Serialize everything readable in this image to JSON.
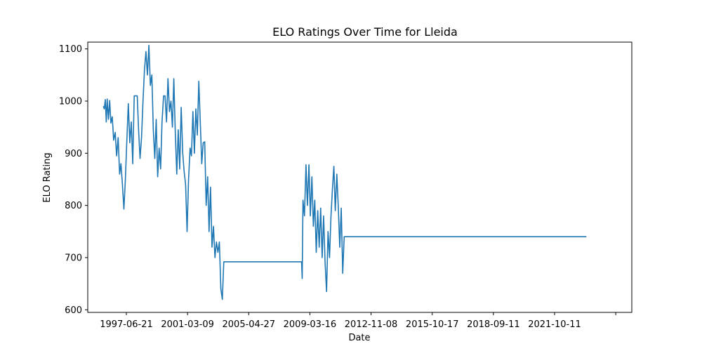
{
  "chart_data": {
    "type": "line",
    "title": "ELO Ratings Over Time for Lleida",
    "xlabel": "Date",
    "ylabel": "ELO Rating",
    "x_tick_labels": [
      "1997-06-21",
      "2001-03-09",
      "2005-04-27",
      "2009-03-16",
      "2012-11-08",
      "2015-10-17",
      "2018-09-11",
      "2021-10-11",
      ""
    ],
    "y_ticks": [
      600,
      700,
      800,
      900,
      1000,
      1100
    ],
    "ylim": [
      595,
      1113
    ],
    "grid": false,
    "legend": "none",
    "color": "#1f77b4",
    "series": [
      {
        "points": [
          [
            "1996-03-01",
            990
          ],
          [
            "1996-03-20",
            985
          ],
          [
            "1996-04-10",
            1003
          ],
          [
            "1996-05-01",
            960
          ],
          [
            "1996-05-20",
            1004
          ],
          [
            "1996-06-15",
            965
          ],
          [
            "1996-07-10",
            1001
          ],
          [
            "1996-08-05",
            958
          ],
          [
            "1996-09-01",
            970
          ],
          [
            "1996-10-01",
            925
          ],
          [
            "1996-11-01",
            940
          ],
          [
            "1996-12-01",
            895
          ],
          [
            "1997-01-01",
            930
          ],
          [
            "1997-02-01",
            860
          ],
          [
            "1997-03-01",
            880
          ],
          [
            "1997-04-01",
            840
          ],
          [
            "1997-05-01",
            793
          ],
          [
            "1997-06-01",
            850
          ],
          [
            "1997-07-01",
            925
          ],
          [
            "1997-08-01",
            995
          ],
          [
            "1997-09-01",
            920
          ],
          [
            "1997-10-01",
            960
          ],
          [
            "1997-11-01",
            880
          ],
          [
            "1997-12-01",
            1010
          ],
          [
            "1998-02-01",
            1010
          ],
          [
            "1998-03-01",
            945
          ],
          [
            "1998-04-01",
            890
          ],
          [
            "1998-05-01",
            930
          ],
          [
            "1998-06-01",
            1000
          ],
          [
            "1998-07-01",
            1060
          ],
          [
            "1998-08-01",
            1095
          ],
          [
            "1998-09-01",
            1050
          ],
          [
            "1998-10-01",
            1107
          ],
          [
            "1998-11-01",
            1030
          ],
          [
            "1998-12-01",
            1050
          ],
          [
            "1999-01-01",
            945
          ],
          [
            "1999-02-01",
            890
          ],
          [
            "1999-03-01",
            965
          ],
          [
            "1999-04-01",
            855
          ],
          [
            "1999-05-01",
            910
          ],
          [
            "1999-06-01",
            870
          ],
          [
            "1999-07-01",
            960
          ],
          [
            "1999-08-01",
            1010
          ],
          [
            "1999-09-01",
            1010
          ],
          [
            "1999-10-01",
            960
          ],
          [
            "1999-11-01",
            1043
          ],
          [
            "1999-12-01",
            980
          ],
          [
            "2000-01-01",
            1000
          ],
          [
            "2000-02-01",
            950
          ],
          [
            "2000-03-01",
            1043
          ],
          [
            "2000-04-01",
            940
          ],
          [
            "2000-05-01",
            860
          ],
          [
            "2000-06-01",
            945
          ],
          [
            "2000-07-01",
            870
          ],
          [
            "2000-08-01",
            988
          ],
          [
            "2000-09-01",
            900
          ],
          [
            "2000-10-01",
            865
          ],
          [
            "2000-11-01",
            840
          ],
          [
            "2000-12-01",
            750
          ],
          [
            "2001-01-01",
            850
          ],
          [
            "2001-02-01",
            910
          ],
          [
            "2001-03-01",
            895
          ],
          [
            "2001-04-01",
            980
          ],
          [
            "2001-05-01",
            900
          ],
          [
            "2001-06-01",
            985
          ],
          [
            "2001-07-01",
            935
          ],
          [
            "2001-08-01",
            1038
          ],
          [
            "2001-09-01",
            960
          ],
          [
            "2001-10-01",
            880
          ],
          [
            "2001-11-01",
            920
          ],
          [
            "2001-12-01",
            922
          ],
          [
            "2002-01-01",
            800
          ],
          [
            "2002-02-01",
            855
          ],
          [
            "2002-03-01",
            750
          ],
          [
            "2002-04-01",
            835
          ],
          [
            "2002-05-01",
            720
          ],
          [
            "2002-06-01",
            760
          ],
          [
            "2002-07-01",
            700
          ],
          [
            "2002-08-01",
            730
          ],
          [
            "2002-09-01",
            710
          ],
          [
            "2002-10-01",
            730
          ],
          [
            "2002-11-01",
            640
          ],
          [
            "2002-12-01",
            620
          ],
          [
            "2003-01-01",
            692
          ],
          [
            "2007-06-01",
            692
          ],
          [
            "2007-06-15",
            660
          ],
          [
            "2007-07-01",
            810
          ],
          [
            "2007-08-01",
            780
          ],
          [
            "2007-09-01",
            878
          ],
          [
            "2007-10-01",
            800
          ],
          [
            "2007-11-01",
            878
          ],
          [
            "2007-12-01",
            780
          ],
          [
            "2008-01-01",
            855
          ],
          [
            "2008-02-01",
            760
          ],
          [
            "2008-03-01",
            810
          ],
          [
            "2008-04-01",
            710
          ],
          [
            "2008-05-01",
            790
          ],
          [
            "2008-06-01",
            720
          ],
          [
            "2008-07-01",
            795
          ],
          [
            "2008-08-01",
            700
          ],
          [
            "2008-09-01",
            780
          ],
          [
            "2008-10-01",
            690
          ],
          [
            "2008-11-01",
            635
          ],
          [
            "2008-12-01",
            750
          ],
          [
            "2009-01-01",
            700
          ],
          [
            "2009-02-01",
            780
          ],
          [
            "2009-03-01",
            830
          ],
          [
            "2009-04-01",
            875
          ],
          [
            "2009-05-01",
            790
          ],
          [
            "2009-06-01",
            860
          ],
          [
            "2009-07-01",
            800
          ],
          [
            "2009-08-01",
            720
          ],
          [
            "2009-09-01",
            795
          ],
          [
            "2009-10-01",
            670
          ],
          [
            "2009-11-01",
            740
          ],
          [
            "2023-08-01",
            740
          ]
        ]
      }
    ]
  }
}
